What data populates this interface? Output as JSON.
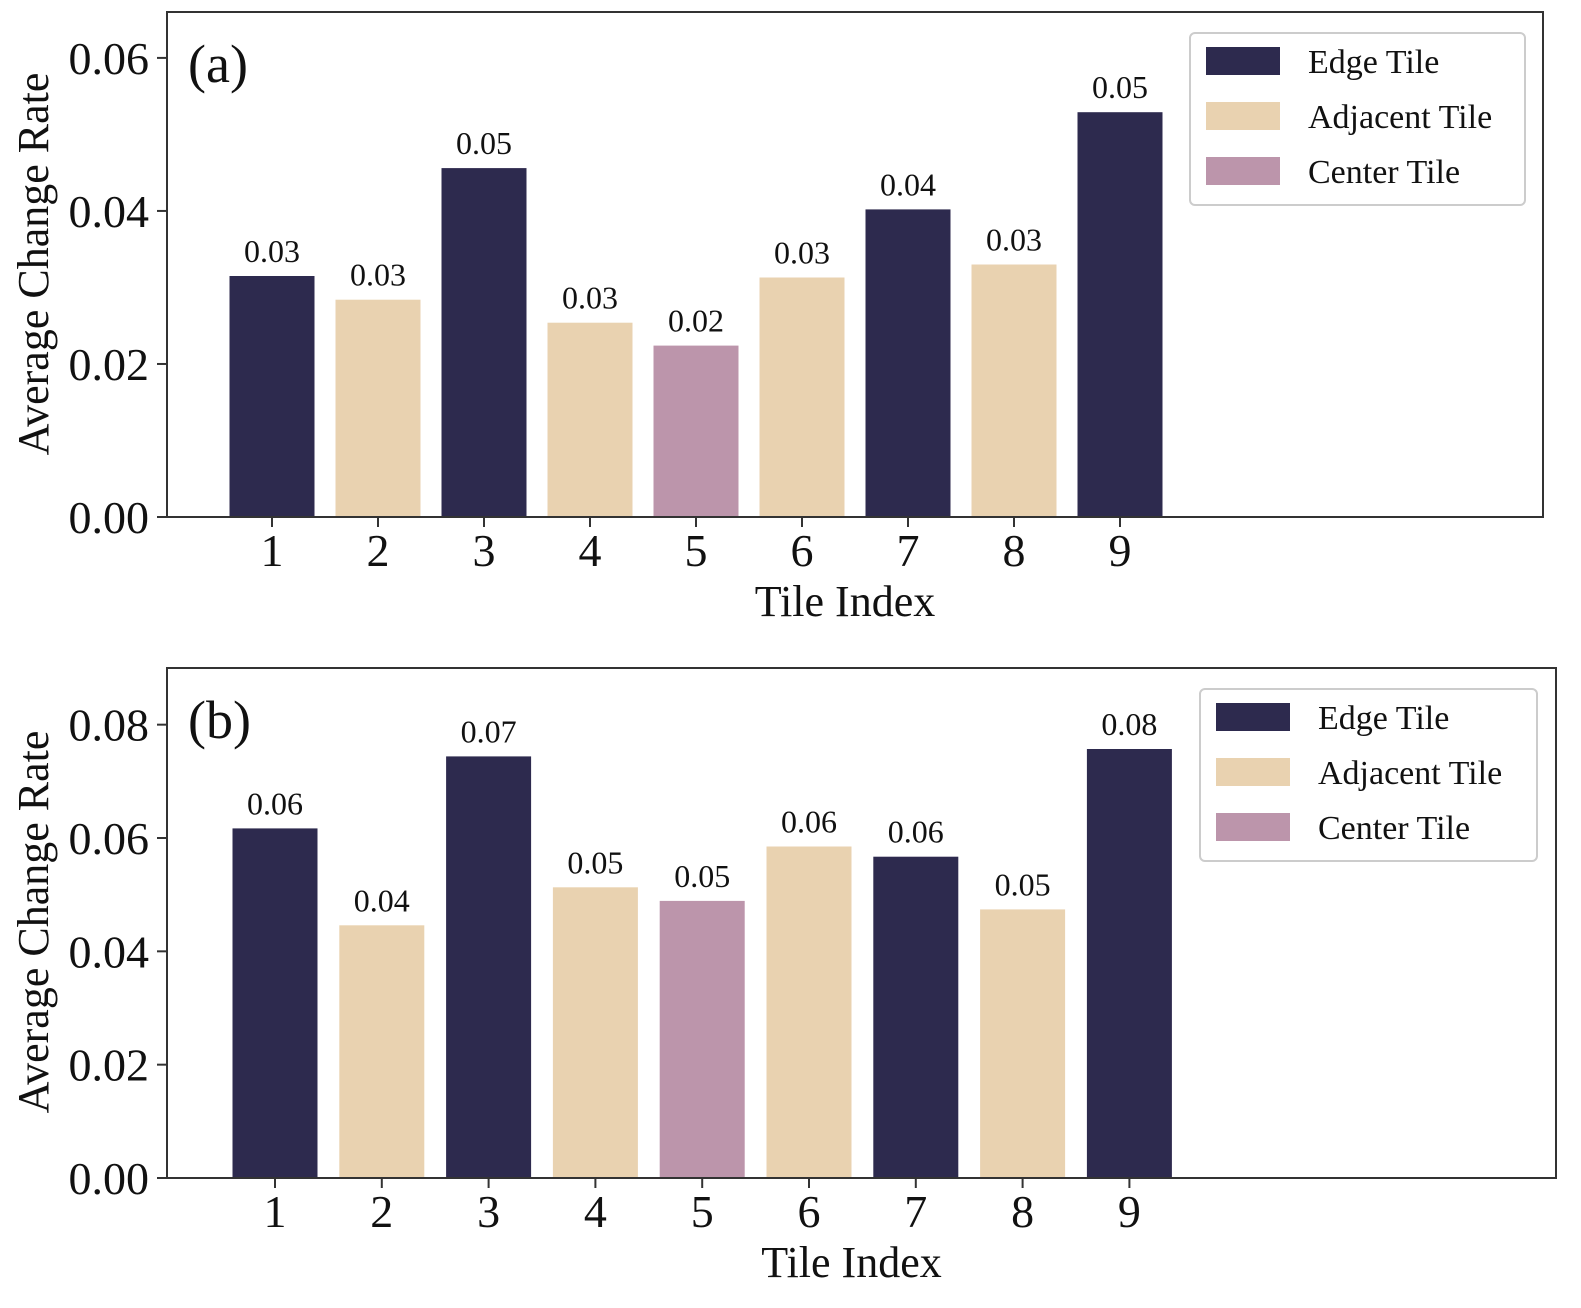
{
  "colors": {
    "edge": "#2d2a4e",
    "adjacent": "#e9d2b0",
    "center": "#bc95ab",
    "axis": "#333333"
  },
  "chart_data": [
    {
      "type": "bar",
      "panel_label": "(a)",
      "xlabel": "Tile Index",
      "ylabel": "Average Change Rate",
      "categories": [
        "1",
        "2",
        "3",
        "4",
        "5",
        "6",
        "7",
        "8",
        "9"
      ],
      "values": [
        0.0315,
        0.0284,
        0.0456,
        0.0254,
        0.0224,
        0.0313,
        0.0402,
        0.033,
        0.0529
      ],
      "bar_labels": [
        "0.03",
        "0.03",
        "0.05",
        "0.03",
        "0.02",
        "0.03",
        "0.04",
        "0.03",
        "0.05"
      ],
      "tile_types": [
        "edge",
        "adjacent",
        "edge",
        "adjacent",
        "center",
        "adjacent",
        "edge",
        "adjacent",
        "edge"
      ],
      "ylim": [
        0,
        0.066
      ],
      "yticks": [
        0.0,
        0.02,
        0.04,
        0.06
      ],
      "ytick_labels": [
        "0.00",
        "0.02",
        "0.04",
        "0.06"
      ],
      "legend": [
        {
          "key": "edge",
          "label": "Edge Tile"
        },
        {
          "key": "adjacent",
          "label": "Adjacent Tile"
        },
        {
          "key": "center",
          "label": "Center Tile"
        }
      ],
      "legend_position": "top-right",
      "grid": false
    },
    {
      "type": "bar",
      "panel_label": "(b)",
      "xlabel": "Tile Index",
      "ylabel": "Average Change Rate",
      "categories": [
        "1",
        "2",
        "3",
        "4",
        "5",
        "6",
        "7",
        "8",
        "9"
      ],
      "values": [
        0.0617,
        0.0446,
        0.0744,
        0.0513,
        0.0489,
        0.0585,
        0.0567,
        0.0474,
        0.0757
      ],
      "bar_labels": [
        "0.06",
        "0.04",
        "0.07",
        "0.05",
        "0.05",
        "0.06",
        "0.06",
        "0.05",
        "0.08"
      ],
      "tile_types": [
        "edge",
        "adjacent",
        "edge",
        "adjacent",
        "center",
        "adjacent",
        "edge",
        "adjacent",
        "edge"
      ],
      "ylim": [
        0,
        0.09
      ],
      "yticks": [
        0.0,
        0.02,
        0.04,
        0.06,
        0.08
      ],
      "ytick_labels": [
        "0.00",
        "0.02",
        "0.04",
        "0.06",
        "0.08"
      ],
      "legend": [
        {
          "key": "edge",
          "label": "Edge Tile"
        },
        {
          "key": "adjacent",
          "label": "Adjacent Tile"
        },
        {
          "key": "center",
          "label": "Center Tile"
        }
      ],
      "legend_position": "top-right",
      "grid": false
    }
  ]
}
